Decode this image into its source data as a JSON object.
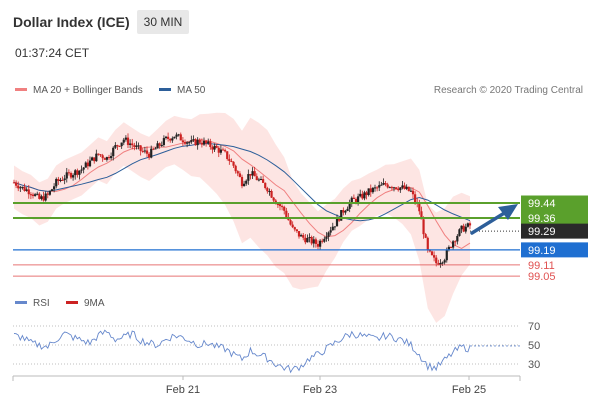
{
  "header": {
    "title": "Dollar Index (ICE)",
    "timeframe": "30 MIN",
    "time": "01:37:24 CET"
  },
  "legend": {
    "ma20": "MA 20 + Bollinger Bands",
    "ma50": "MA 50",
    "credit": "Research © 2020 Trading Central"
  },
  "rsi_legend": {
    "rsi": "RSI",
    "ma9": "9MA"
  },
  "colors": {
    "ma20": "#f08080",
    "ma50": "#2d5f9a",
    "bands": "#fde0de",
    "green": "#5aa02c",
    "blue": "#1f6fd1",
    "red": "#e05252",
    "rsi": "#6688cc",
    "candle": "#222222",
    "candle_red": "#cc2222"
  },
  "chart_data": {
    "type": "candlestick",
    "xlabels": [
      "Feb 21",
      "Feb 23",
      "Feb 25"
    ],
    "levels": [
      {
        "value": 99.44,
        "label": "99.44",
        "style": "green"
      },
      {
        "value": 99.36,
        "label": "99.36",
        "style": "green"
      },
      {
        "value": 99.29,
        "label": "99.29",
        "style": "current"
      },
      {
        "value": 99.19,
        "label": "99.19",
        "style": "blue"
      },
      {
        "value": 99.11,
        "label": "99.11",
        "style": "red"
      },
      {
        "value": 99.05,
        "label": "99.05",
        "style": "red"
      }
    ],
    "rsi_ticks": [
      70,
      50,
      30
    ],
    "price_points": [
      99.55,
      99.52,
      99.5,
      99.46,
      99.48,
      99.55,
      99.58,
      99.6,
      99.62,
      99.66,
      99.7,
      99.68,
      99.74,
      99.78,
      99.75,
      99.72,
      99.7,
      99.74,
      99.78,
      99.8,
      99.78,
      99.76,
      99.77,
      99.75,
      99.73,
      99.7,
      99.64,
      99.55,
      99.6,
      99.56,
      99.52,
      99.45,
      99.4,
      99.3,
      99.26,
      99.24,
      99.22,
      99.28,
      99.33,
      99.4,
      99.45,
      99.47,
      99.5,
      99.52,
      99.54,
      99.53,
      99.52,
      99.5,
      99.4,
      99.18,
      99.12,
      99.15,
      99.24,
      99.3,
      99.32
    ],
    "rsi_points": [
      60,
      58,
      52,
      50,
      48,
      56,
      62,
      58,
      55,
      52,
      60,
      64,
      56,
      58,
      62,
      55,
      52,
      50,
      56,
      60,
      58,
      54,
      50,
      52,
      48,
      46,
      40,
      35,
      44,
      40,
      36,
      30,
      26,
      24,
      28,
      36,
      40,
      46,
      52,
      58,
      62,
      60,
      58,
      56,
      60,
      58,
      55,
      50,
      40,
      28,
      26,
      34,
      42,
      48,
      46
    ]
  }
}
